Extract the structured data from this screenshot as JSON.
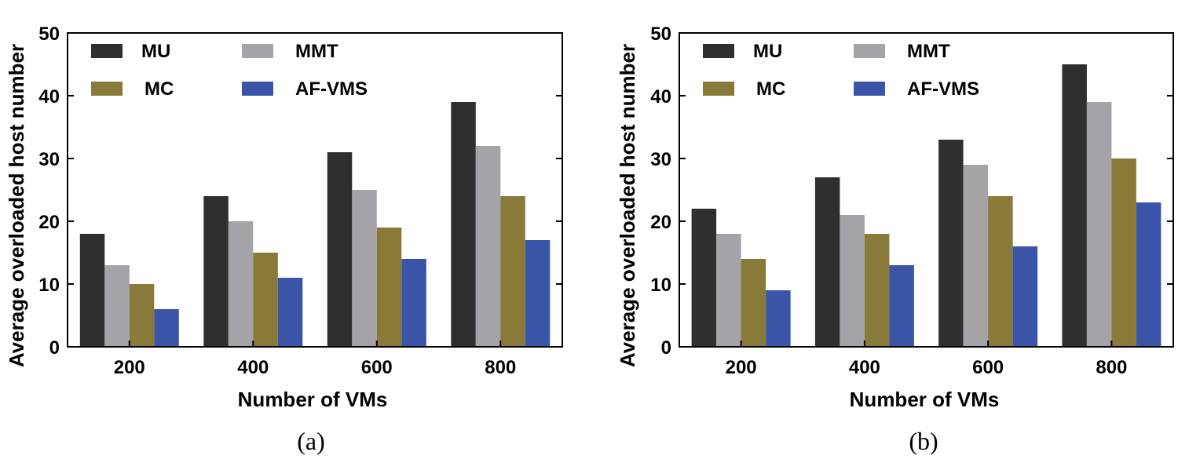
{
  "colors": {
    "MU": "#2f2f2f",
    "MMT": "#a3a3a8",
    "MC": "#8a7a3a",
    "AF-VMS": "#3a55a8"
  },
  "chart_data": [
    {
      "type": "bar",
      "caption": "(a)",
      "xlabel": "Number of VMs",
      "ylabel": "Average overloaded host number",
      "categories": [
        "200",
        "400",
        "600",
        "800"
      ],
      "ylim": [
        0,
        50
      ],
      "yticks": [
        "0",
        "10",
        "20",
        "30",
        "40",
        "50"
      ],
      "legend": [
        "MU",
        "MMT",
        "MC",
        "AF-VMS"
      ],
      "series": [
        {
          "name": "MU",
          "values": [
            18,
            24,
            31,
            39
          ]
        },
        {
          "name": "MMT",
          "values": [
            13,
            20,
            25,
            32
          ]
        },
        {
          "name": "MC",
          "values": [
            10,
            15,
            19,
            24
          ]
        },
        {
          "name": "AF-VMS",
          "values": [
            6,
            11,
            14,
            17
          ]
        }
      ]
    },
    {
      "type": "bar",
      "caption": "(b)",
      "xlabel": "Number of VMs",
      "ylabel": "Average overloaded host number",
      "categories": [
        "200",
        "400",
        "600",
        "800"
      ],
      "ylim": [
        0,
        50
      ],
      "yticks": [
        "0",
        "10",
        "20",
        "30",
        "40",
        "50"
      ],
      "legend": [
        "MU",
        "MMT",
        "MC",
        "AF-VMS"
      ],
      "series": [
        {
          "name": "MU",
          "values": [
            22,
            27,
            33,
            45
          ]
        },
        {
          "name": "MMT",
          "values": [
            18,
            21,
            29,
            39
          ]
        },
        {
          "name": "MC",
          "values": [
            14,
            18,
            24,
            30
          ]
        },
        {
          "name": "AF-VMS",
          "values": [
            9,
            13,
            16,
            23
          ]
        }
      ]
    }
  ]
}
